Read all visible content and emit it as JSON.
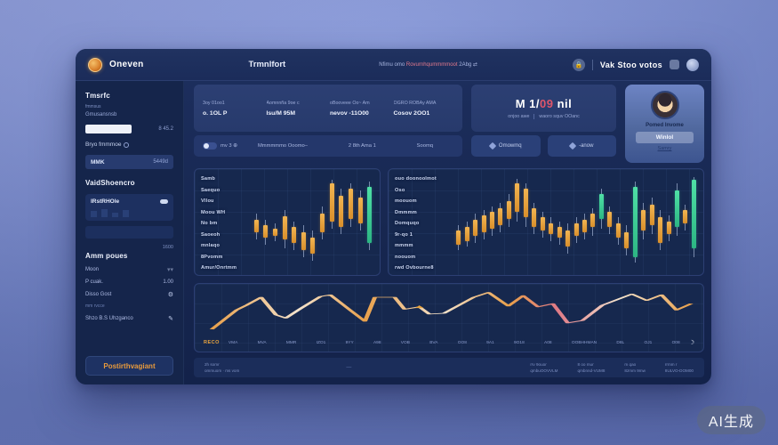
{
  "theme": {
    "accent_orange": "#e8a33d",
    "accent_green": "#3fd69a",
    "accent_red": "#e0556a",
    "window_bg": "#172750",
    "page_bg": "#7589d0",
    "light_card": "#6d84c4"
  },
  "watermark": "AI生成",
  "header": {
    "brand": "Oneven",
    "nav_item": "Trmnlfort",
    "note_pre": "Nfimu omo ",
    "note_red": "Rovurnhqummmmoot",
    "note_post": " 2Abg ⇄",
    "account_label": "Vak Stoo votos"
  },
  "sidebar": {
    "title1": "Tmsrfc",
    "sub1": "fmmsus",
    "text1": "Gmusansnsb",
    "amount_value": "8 45.2",
    "label_send": "Bryo fmmmoe",
    "asset_symbol": "MMK",
    "asset_value": "5449d",
    "title2": "VaidShoencro",
    "card_title": "IRstRHOle",
    "count": "1600",
    "title3": "Amm poues",
    "row_moon": "Moon",
    "row_peak_label": "P cuak.",
    "row_peak_value": "1.00",
    "row_disso": "Disso Gost",
    "tiny_note": "mm rvcce",
    "row_shzo": "Shzo B.S Uhzganco",
    "cta": "Postirthvagiant"
  },
  "stats": {
    "items": [
      {
        "label": "3oy 01oo1",
        "value": "o. 1OL P"
      },
      {
        "label": "Aomnnña 9oe c",
        "value": "Isu/M  95M"
      },
      {
        "label": "oBooveee Oo~ Am",
        "value": "nevov  -11O00"
      },
      {
        "label": "OGRO ROBAy AMA",
        "value": "Cosov  2OO1"
      }
    ]
  },
  "gauge_card": {
    "value_pre": "M 1/",
    "value_red": "09",
    "value_post": " nil",
    "sub_left": "onjoo awe",
    "sub_right": "waoro squv OOanc"
  },
  "profile_card": {
    "name": "Pomed Invome",
    "button": "Winlol",
    "link": "Samry"
  },
  "filters": {
    "toggle_label": "mv 3 ⊕",
    "menu": "Mmmmmmo Ooomo–",
    "date": "2 8th Ama 1",
    "sort": "Soomq",
    "actions": [
      {
        "label": "Omowmq"
      },
      {
        "label": "-anow"
      }
    ]
  },
  "chart_data": [
    {
      "type": "candlestick",
      "panel": "left",
      "overlay_labels": [
        "Samb",
        "Saequo",
        "Vllou",
        "Moou WH",
        "No bm",
        "Saoeoh",
        "mnlaqo",
        "8Pvomm",
        "Amur/Onrtmm"
      ],
      "note": "candles as [wickLow, bodyLow, bodyHigh, wickHigh, isGreen] on relative 0-100 price scale",
      "candles": [
        [
          30,
          38,
          52,
          58,
          0
        ],
        [
          24,
          32,
          46,
          52,
          0
        ],
        [
          28,
          34,
          42,
          48,
          0
        ],
        [
          20,
          30,
          55,
          62,
          0
        ],
        [
          18,
          26,
          44,
          50,
          0
        ],
        [
          10,
          18,
          38,
          46,
          0
        ],
        [
          6,
          14,
          32,
          40,
          0
        ],
        [
          30,
          38,
          58,
          66,
          0
        ],
        [
          42,
          50,
          92,
          96,
          0
        ],
        [
          36,
          44,
          78,
          86,
          0
        ],
        [
          44,
          52,
          86,
          92,
          0
        ],
        [
          40,
          48,
          76,
          84,
          0
        ],
        [
          18,
          26,
          88,
          94,
          1
        ]
      ]
    },
    {
      "type": "candlestick",
      "panel": "right",
      "overlay_labels": [
        "ouo doonoolmot",
        "Oso",
        "moouom",
        "Dmmmm",
        "Domquqo",
        "9r-qo 1",
        "mmmm",
        "noouom",
        "rwd Ovbourne8"
      ],
      "note": "candles as [wickLow, bodyLow, bodyHigh, wickHigh, isGreen] on relative 0-100 price scale",
      "candles": [
        [
          18,
          24,
          40,
          46,
          0
        ],
        [
          22,
          28,
          44,
          50,
          0
        ],
        [
          26,
          34,
          52,
          58,
          0
        ],
        [
          30,
          38,
          56,
          62,
          0
        ],
        [
          34,
          42,
          60,
          66,
          0
        ],
        [
          38,
          46,
          64,
          70,
          0
        ],
        [
          44,
          52,
          72,
          80,
          0
        ],
        [
          50,
          60,
          92,
          97,
          0
        ],
        [
          44,
          54,
          86,
          92,
          0
        ],
        [
          36,
          44,
          64,
          70,
          0
        ],
        [
          32,
          40,
          54,
          60,
          0
        ],
        [
          28,
          36,
          48,
          54,
          0
        ],
        [
          24,
          32,
          44,
          50,
          0
        ],
        [
          14,
          22,
          40,
          48,
          0
        ],
        [
          26,
          34,
          48,
          54,
          0
        ],
        [
          30,
          38,
          52,
          58,
          0
        ],
        [
          34,
          44,
          58,
          64,
          0
        ],
        [
          42,
          52,
          80,
          86,
          1
        ],
        [
          36,
          44,
          60,
          66,
          0
        ],
        [
          24,
          32,
          48,
          54,
          0
        ],
        [
          12,
          20,
          38,
          46,
          0
        ],
        [
          4,
          10,
          88,
          94,
          1
        ],
        [
          30,
          40,
          62,
          70,
          0
        ],
        [
          36,
          46,
          68,
          76,
          0
        ],
        [
          18,
          26,
          54,
          62,
          0
        ],
        [
          28,
          36,
          50,
          56,
          0
        ],
        [
          34,
          44,
          84,
          92,
          1
        ],
        [
          40,
          48,
          62,
          68,
          0
        ],
        [
          10,
          20,
          96,
          99,
          1
        ]
      ]
    },
    {
      "type": "line",
      "tick_accent": "RECO",
      "x_ticks": [
        "VMA",
        "MVA",
        "MMR",
        "IZO1",
        "9YY",
        "A98",
        "VOB",
        "BVA",
        "OO8",
        "9A1",
        "9O18",
        "A08",
        "OOBHHMAN",
        "D8L",
        "OJ1",
        "O08"
      ],
      "note": "points as [x 0-100, y 0-60 svg coords, y increases downward]",
      "points": [
        [
          2,
          50
        ],
        [
          7,
          26
        ],
        [
          9,
          20
        ],
        [
          12,
          10
        ],
        [
          15,
          32
        ],
        [
          17,
          36
        ],
        [
          20,
          24
        ],
        [
          24,
          9
        ],
        [
          26,
          7
        ],
        [
          30,
          26
        ],
        [
          33,
          40
        ],
        [
          35,
          10
        ],
        [
          39,
          10
        ],
        [
          41,
          25
        ],
        [
          44,
          22
        ],
        [
          46,
          31
        ],
        [
          49,
          30
        ],
        [
          55,
          10
        ],
        [
          58,
          4
        ],
        [
          62,
          21
        ],
        [
          65,
          8
        ],
        [
          68,
          22
        ],
        [
          71,
          18
        ],
        [
          74,
          42
        ],
        [
          77,
          39
        ],
        [
          81,
          20
        ],
        [
          87,
          6
        ],
        [
          90,
          14
        ],
        [
          93,
          7
        ],
        [
          96,
          26
        ],
        [
          99,
          18
        ]
      ],
      "marker_point": [
        44,
        22
      ]
    }
  ],
  "footer": {
    "left_top": "2h somr",
    "left_bottom": "ommuom · ms vom",
    "dash": "—",
    "columns": [
      [
        "rrv 9ouor",
        "qmbuOOVVLM"
      ],
      [
        "8 oo mur",
        "qmbnnd-VUM8"
      ],
      [
        "m qao",
        "8zmm 9mw"
      ],
      [
        "rrmm r",
        "8ULVO-DOM00"
      ]
    ]
  }
}
